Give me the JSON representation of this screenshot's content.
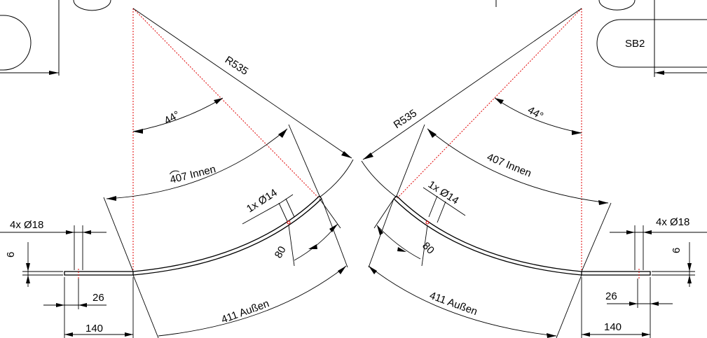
{
  "colors": {
    "line": "#000000",
    "centerline": "#e00000",
    "background": "#ffffff"
  },
  "left_view": {
    "radius": "R535",
    "angle": "44°",
    "arc_inner": "407 Innen",
    "arc_outer": "411 Außen",
    "arc_center": "80",
    "hole_single": "1x Ø14",
    "holes_multi": "4x Ø18",
    "thickness": "6",
    "offset": "26",
    "length": "140"
  },
  "right_view": {
    "radius": "R535",
    "angle": "44°",
    "arc_inner": "407 Innen",
    "arc_outer": "411 Außen",
    "arc_center": "80",
    "hole_single": "1x Ø14",
    "holes_multi": "4x Ø18",
    "thickness": "6",
    "offset": "26",
    "length": "140",
    "slot_label": "SB2"
  }
}
